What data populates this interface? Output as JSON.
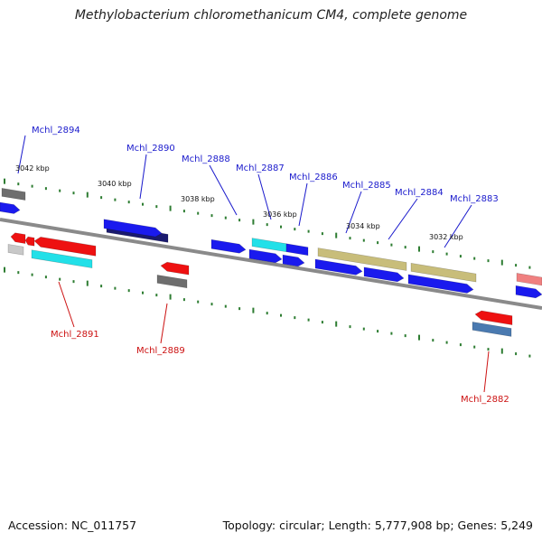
{
  "title": "Methylobacterium chloromethanicum CM4, complete genome",
  "accession": "Accession: NC_011757",
  "summary": "Topology: circular; Length: 5,777,908 bp; Genes: 5,249",
  "colors": {
    "backbone": "#8a8a8a",
    "tick": "#2e7d32",
    "forward_label": "#1a1acc",
    "reverse_label": "#cc1111",
    "blue": "#1a1aee",
    "navy": "#1a1a6e",
    "cyan": "#22e0e8",
    "red": "#ee1111",
    "gray": "#6e6e6e",
    "light_gray": "#c8c8c8",
    "khaki": "#c8bd7a",
    "steel": "#4a7ab0",
    "pink": "#f08080"
  },
  "scale_labels": [
    "3042 kbp",
    "3040 kbp",
    "3038 kbp",
    "3036 kbp",
    "3034 kbp",
    "3032 kbp"
  ],
  "gene_labels": {
    "forward": [
      "Mchl_2894",
      "Mchl_2890",
      "Mchl_2888",
      "Mchl_2887",
      "Mchl_2886",
      "Mchl_2885",
      "Mchl_2884",
      "Mchl_2883"
    ],
    "reverse": [
      "Mchl_2891",
      "Mchl_2889",
      "Mchl_2882"
    ]
  }
}
